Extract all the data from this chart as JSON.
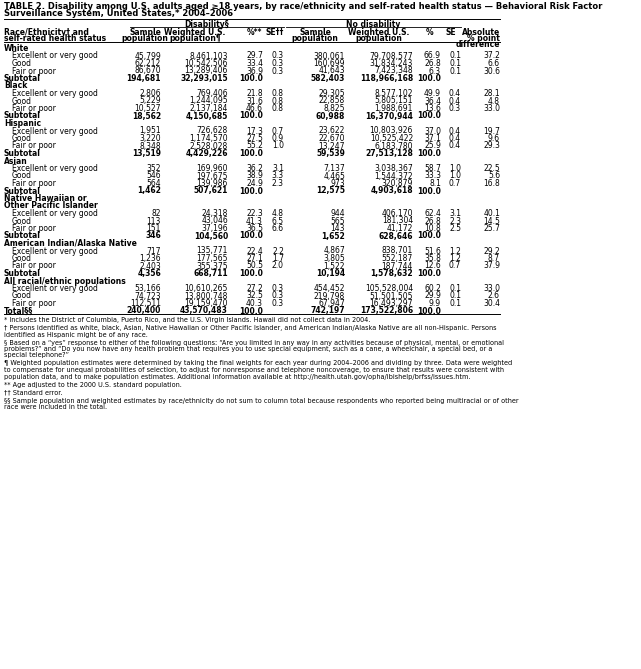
{
  "title_line1": "TABLE 2. Disability among U.S. adults aged ≥18 years, by race/ethnicity and self-rated health status — Behavioral Risk Factor",
  "title_line2": "Surveillance System, United States,* 2004–2006",
  "disability_header": "Disability§",
  "no_disability_header": "No disability",
  "rows": [
    {
      "label": "White",
      "type": "group",
      "label2": ""
    },
    {
      "label": "Excellent or very good",
      "type": "data",
      "d_sample": "45,799",
      "d_weighted": "8,461,103",
      "d_pct": "29.7",
      "d_se": "0.3",
      "n_sample": "380,061",
      "n_weighted": "79,708,577",
      "n_pct": "66.9",
      "n_se": "0.1",
      "diff": "37.2"
    },
    {
      "label": "Good",
      "type": "data",
      "d_sample": "62,212",
      "d_weighted": "10,542,506",
      "d_pct": "33.4",
      "d_se": "0.3",
      "n_sample": "160,699",
      "n_weighted": "31,834,243",
      "n_pct": "26.8",
      "n_se": "0.1",
      "diff": "6.6"
    },
    {
      "label": "Fair or poor",
      "type": "data",
      "d_sample": "86,670",
      "d_weighted": "13,289,406",
      "d_pct": "36.9",
      "d_se": "0.3",
      "n_sample": "41,643",
      "n_weighted": "7,423,348",
      "n_pct": "6.3",
      "n_se": "0.1",
      "diff": "30.6"
    },
    {
      "label": "Subtotal",
      "type": "subtotal",
      "d_sample": "194,681",
      "d_weighted": "32,293,015",
      "d_pct": "100.0",
      "d_se": "",
      "n_sample": "582,403",
      "n_weighted": "118,966,168",
      "n_pct": "100.0",
      "n_se": "",
      "diff": ""
    },
    {
      "label": "Black",
      "type": "group",
      "label2": ""
    },
    {
      "label": "Excellent or very good",
      "type": "data",
      "d_sample": "2,806",
      "d_weighted": "769,406",
      "d_pct": "21.8",
      "d_se": "0.8",
      "n_sample": "29,305",
      "n_weighted": "8,577,102",
      "n_pct": "49.9",
      "n_se": "0.4",
      "diff": "28.1"
    },
    {
      "label": "Good",
      "type": "data",
      "d_sample": "5,229",
      "d_weighted": "1,244,095",
      "d_pct": "31.6",
      "d_se": "0.8",
      "n_sample": "22,858",
      "n_weighted": "5,805,151",
      "n_pct": "36.4",
      "n_se": "0.4",
      "diff": "4.8"
    },
    {
      "label": "Fair or poor",
      "type": "data",
      "d_sample": "10,527",
      "d_weighted": "2,137,184",
      "d_pct": "46.6",
      "d_se": "0.8",
      "n_sample": "8,825",
      "n_weighted": "1,988,691",
      "n_pct": "13.6",
      "n_se": "0.3",
      "diff": "33.0"
    },
    {
      "label": "Subtotal",
      "type": "subtotal",
      "d_sample": "18,562",
      "d_weighted": "4,150,685",
      "d_pct": "100.0",
      "d_se": "",
      "n_sample": "60,988",
      "n_weighted": "16,370,944",
      "n_pct": "100.0",
      "n_se": "",
      "diff": ""
    },
    {
      "label": "Hispanic",
      "type": "group",
      "label2": ""
    },
    {
      "label": "Excellent or very good",
      "type": "data",
      "d_sample": "1,951",
      "d_weighted": "726,628",
      "d_pct": "17.3",
      "d_se": "0.7",
      "n_sample": "23,622",
      "n_weighted": "10,803,926",
      "n_pct": "37.0",
      "n_se": "0.4",
      "diff": "19.7"
    },
    {
      "label": "Good",
      "type": "data",
      "d_sample": "3,220",
      "d_weighted": "1,174,570",
      "d_pct": "27.5",
      "d_se": "0.9",
      "n_sample": "22,670",
      "n_weighted": "10,525,422",
      "n_pct": "37.1",
      "n_se": "0.4",
      "diff": "9.6"
    },
    {
      "label": "Fair or poor",
      "type": "data",
      "d_sample": "8,348",
      "d_weighted": "2,528,028",
      "d_pct": "55.2",
      "d_se": "1.0",
      "n_sample": "13,247",
      "n_weighted": "6,183,780",
      "n_pct": "25.9",
      "n_se": "0.4",
      "diff": "29.3"
    },
    {
      "label": "Subtotal",
      "type": "subtotal",
      "d_sample": "13,519",
      "d_weighted": "4,429,226",
      "d_pct": "100.0",
      "d_se": "",
      "n_sample": "59,539",
      "n_weighted": "27,513,128",
      "n_pct": "100.0",
      "n_se": "",
      "diff": ""
    },
    {
      "label": "Asian",
      "type": "group",
      "label2": ""
    },
    {
      "label": "Excellent or very good",
      "type": "data",
      "d_sample": "352",
      "d_weighted": "169,960",
      "d_pct": "36.2",
      "d_se": "3.1",
      "n_sample": "7,137",
      "n_weighted": "3,038,367",
      "n_pct": "58.7",
      "n_se": "1.0",
      "diff": "22.5"
    },
    {
      "label": "Good",
      "type": "data",
      "d_sample": "546",
      "d_weighted": "197,675",
      "d_pct": "38.9",
      "d_se": "3.3",
      "n_sample": "4,465",
      "n_weighted": "1,544,372",
      "n_pct": "33.3",
      "n_se": "1.0",
      "diff": "5.6"
    },
    {
      "label": "Fair or poor",
      "type": "data",
      "d_sample": "564",
      "d_weighted": "139,986",
      "d_pct": "24.9",
      "d_se": "2.3",
      "n_sample": "973",
      "n_weighted": "320,879",
      "n_pct": "8.1",
      "n_se": "0.7",
      "diff": "16.8"
    },
    {
      "label": "Subtotal",
      "type": "subtotal",
      "d_sample": "1,462",
      "d_weighted": "507,621",
      "d_pct": "100.0",
      "d_se": "",
      "n_sample": "12,575",
      "n_weighted": "4,903,618",
      "n_pct": "100.0",
      "n_se": "",
      "diff": ""
    },
    {
      "label": "Native Hawaiian or",
      "type": "group",
      "label2": "Other Pacific Islander"
    },
    {
      "label": "Excellent or very good",
      "type": "data",
      "d_sample": "82",
      "d_weighted": "24,318",
      "d_pct": "22.3",
      "d_se": "4.8",
      "n_sample": "944",
      "n_weighted": "406,170",
      "n_pct": "62.4",
      "n_se": "3.1",
      "diff": "40.1"
    },
    {
      "label": "Good",
      "type": "data",
      "d_sample": "113",
      "d_weighted": "43,046",
      "d_pct": "41.3",
      "d_se": "6.5",
      "n_sample": "565",
      "n_weighted": "181,304",
      "n_pct": "26.8",
      "n_se": "2.3",
      "diff": "14.5"
    },
    {
      "label": "Fair or poor",
      "type": "data",
      "d_sample": "151",
      "d_weighted": "37,196",
      "d_pct": "36.5",
      "d_se": "6.6",
      "n_sample": "143",
      "n_weighted": "41,172",
      "n_pct": "10.8",
      "n_se": "2.5",
      "diff": "25.7"
    },
    {
      "label": "Subtotal",
      "type": "subtotal",
      "d_sample": "346",
      "d_weighted": "104,560",
      "d_pct": "100.0",
      "d_se": "",
      "n_sample": "1,652",
      "n_weighted": "628,646",
      "n_pct": "100.0",
      "n_se": "",
      "diff": ""
    },
    {
      "label": "American Indian/Alaska Native",
      "type": "group",
      "label2": ""
    },
    {
      "label": "Excellent or very good",
      "type": "data",
      "d_sample": "717",
      "d_weighted": "135,771",
      "d_pct": "22.4",
      "d_se": "2.2",
      "n_sample": "4,867",
      "n_weighted": "838,701",
      "n_pct": "51.6",
      "n_se": "1.2",
      "diff": "29.2"
    },
    {
      "label": "Good",
      "type": "data",
      "d_sample": "1,236",
      "d_weighted": "177,565",
      "d_pct": "27.1",
      "d_se": "1.7",
      "n_sample": "3,805",
      "n_weighted": "552,187",
      "n_pct": "35.8",
      "n_se": "1.2",
      "diff": "8.7"
    },
    {
      "label": "Fair or poor",
      "type": "data",
      "d_sample": "2,403",
      "d_weighted": "355,375",
      "d_pct": "50.5",
      "d_se": "2.0",
      "n_sample": "1,522",
      "n_weighted": "187,744",
      "n_pct": "12.6",
      "n_se": "0.7",
      "diff": "37.9"
    },
    {
      "label": "Subtotal",
      "type": "subtotal",
      "d_sample": "4,356",
      "d_weighted": "668,711",
      "d_pct": "100.0",
      "d_se": "",
      "n_sample": "10,194",
      "n_weighted": "1,578,632",
      "n_pct": "100.0",
      "n_se": "",
      "diff": ""
    },
    {
      "label": "All racial/ethnic populations",
      "type": "group",
      "label2": ""
    },
    {
      "label": "Excellent or very good",
      "type": "data",
      "d_sample": "53,166",
      "d_weighted": "10,610,265",
      "d_pct": "27.2",
      "d_se": "0.3",
      "n_sample": "454,452",
      "n_weighted": "105,528,004",
      "n_pct": "60.2",
      "n_se": "0.1",
      "diff": "33.0"
    },
    {
      "label": "Good",
      "type": "data",
      "d_sample": "74,723",
      "d_weighted": "13,800,748",
      "d_pct": "32.5",
      "d_se": "0.3",
      "n_sample": "219,798",
      "n_weighted": "51,501,505",
      "n_pct": "29.9",
      "n_se": "0.1",
      "diff": "2.6"
    },
    {
      "label": "Fair or poor",
      "type": "data",
      "d_sample": "112,511",
      "d_weighted": "19,159,470",
      "d_pct": "40.3",
      "d_se": "0.3",
      "n_sample": "67,947",
      "n_weighted": "16,493,297",
      "n_pct": "9.9",
      "n_se": "0.1",
      "diff": "30.4"
    },
    {
      "label": "Total§§",
      "type": "total",
      "d_sample": "240,400",
      "d_weighted": "43,570,483",
      "d_pct": "100.0",
      "d_se": "",
      "n_sample": "742,197",
      "n_weighted": "173,522,806",
      "n_pct": "100.0",
      "n_se": "",
      "diff": ""
    }
  ],
  "footnotes": [
    "* Includes the District of Columbia, Puerto Rico, and the U.S. Virgin Islands. Hawaii did not collect data in 2004.",
    "† Persons identified as white, black, Asian, Native Hawaiian or Other Pacific Islander, and American Indian/Alaska Native are all non-Hispanic. Persons\nidentified as Hispanic might be of any race.",
    "§ Based on a “yes” response to either of the following questions: “Are you limited in any way in any activities because of physical, mental, or emotional\nproblems?” and “Do you now have any health problem that requires you to use special equipment, such as a cane, a wheelchair, a special bed, or a\nspecial telephone?”",
    "¶ Weighted population estimates were determined by taking the final weights for each year during 2004–2006 and dividing by three. Data were weighted\nto compensate for unequal probabilities of selection, to adjust for nonresponse and telephone noncoverage, to ensure that results were consistent with\npopulation data, and to make population estimates. Additional information available at http://health.utah.gov/opha/ibishelp/brfss/issues.htm.",
    "** Age adjusted to the 2000 U.S. standard population.",
    "†† Standard error.",
    "§§ Sample population and weighted estimates by race/ethnicity do not sum to column total because respondents who reported being multiracial or of other\nrace were included in the total."
  ]
}
